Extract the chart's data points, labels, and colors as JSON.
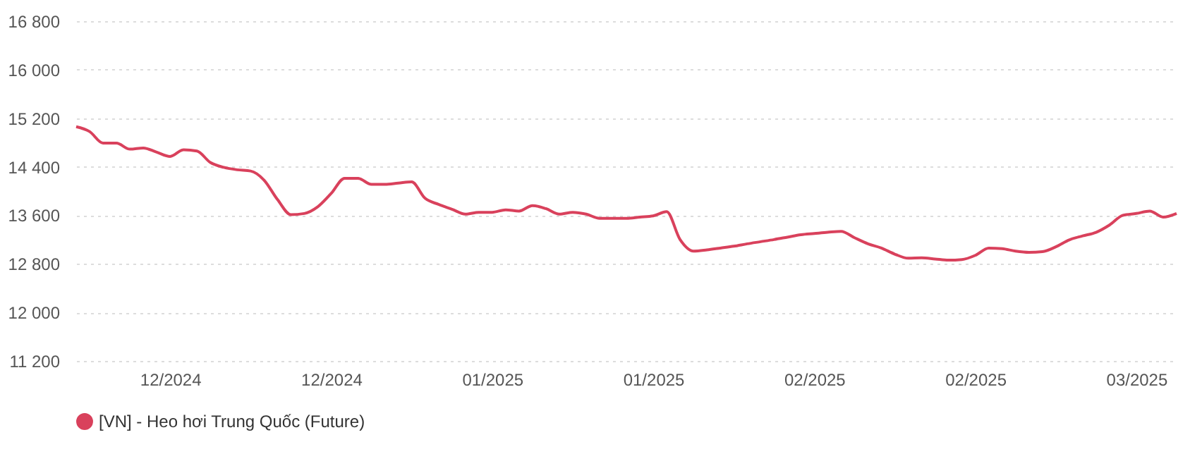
{
  "chart_data": {
    "type": "line",
    "categories": [
      null,
      null,
      null,
      null,
      null,
      null,
      null,
      "12/2024",
      null,
      null,
      null,
      null,
      null,
      null,
      null,
      null,
      null,
      null,
      null,
      "12/2024",
      null,
      null,
      null,
      null,
      null,
      null,
      null,
      null,
      null,
      null,
      null,
      "01/2025",
      null,
      null,
      null,
      null,
      null,
      null,
      null,
      null,
      null,
      null,
      null,
      "01/2025",
      null,
      null,
      null,
      null,
      null,
      null,
      null,
      null,
      null,
      null,
      null,
      "02/2025",
      null,
      null,
      null,
      null,
      null,
      null,
      null,
      null,
      null,
      null,
      null,
      "02/2025",
      null,
      null,
      null,
      null,
      null,
      null,
      null,
      null,
      null,
      null,
      null,
      "03/2025",
      null,
      null,
      null
    ],
    "series": [
      {
        "name": "[VN] - Heo hơi Trung Quốc (Future)",
        "color": "#d9415c",
        "values": [
          15060,
          14980,
          14790,
          14790,
          14690,
          14710,
          14640,
          14570,
          14680,
          14660,
          14470,
          14390,
          14350,
          14330,
          14180,
          13860,
          13610,
          13630,
          13740,
          13960,
          14210,
          14210,
          14110,
          14110,
          14130,
          14150,
          13880,
          13780,
          13700,
          13620,
          13650,
          13650,
          13690,
          13670,
          13760,
          13710,
          13620,
          13650,
          13620,
          13550,
          13550,
          13550,
          13570,
          13590,
          13660,
          13200,
          13010,
          13030,
          13060,
          13090,
          13130,
          13165,
          13200,
          13240,
          13280,
          13300,
          13320,
          13335,
          13230,
          13130,
          13060,
          12960,
          12893,
          12900,
          12880,
          12860,
          12870,
          12940,
          13060,
          13050,
          13010,
          12990,
          13000,
          13080,
          13195,
          13260,
          13320,
          13440,
          13600,
          13630,
          13670,
          13570,
          13630
        ]
      }
    ],
    "ylim": [
      11200,
      16800
    ],
    "yticks": [
      {
        "value": 11200,
        "label": "11 200"
      },
      {
        "value": 12000,
        "label": "12 000"
      },
      {
        "value": 12800,
        "label": "12 800"
      },
      {
        "value": 13600,
        "label": "13 600"
      },
      {
        "value": 14400,
        "label": "14 400"
      },
      {
        "value": 15200,
        "label": "15 200"
      },
      {
        "value": 16000,
        "label": "16 000"
      },
      {
        "value": 16800,
        "label": "16 800"
      }
    ],
    "grid": "y",
    "legend": "bottom",
    "marker": "none",
    "line_style": "solid"
  }
}
